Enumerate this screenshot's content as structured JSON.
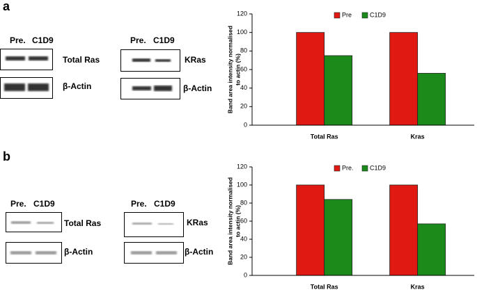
{
  "panels": [
    {
      "letter": "a",
      "blot_header": [
        "Pre.",
        "C1D9"
      ],
      "blots": [
        {
          "header": [
            "Pre.",
            "C1D9"
          ],
          "rows": [
            "Total Ras",
            "β-Actin"
          ]
        },
        {
          "header": [
            "Pre.",
            "C1D9"
          ],
          "rows": [
            "KRas",
            "β-Actin"
          ]
        }
      ]
    },
    {
      "letter": "b",
      "blot_header": [
        "Pre.",
        "C1D9"
      ],
      "blots": [
        {
          "header": [
            "Pre.",
            "C1D9"
          ],
          "rows": [
            "Total Ras",
            "β-Actin"
          ]
        },
        {
          "header": [
            "Pre.",
            "C1D9"
          ],
          "rows": [
            "KRas",
            "β-Actin"
          ]
        }
      ]
    }
  ],
  "chart_data": [
    {
      "type": "bar",
      "y_label": [
        "Band area intensity normalised",
        "to actin (%)"
      ],
      "categories": [
        "Total Ras",
        "Kras"
      ],
      "series": [
        {
          "name": "Pre",
          "color": "#e01a12",
          "values": [
            100,
            100
          ]
        },
        {
          "name": "C1D9",
          "color": "#1b8a1b",
          "values": [
            75,
            56
          ]
        }
      ],
      "ylim": [
        0,
        120
      ],
      "yticks": [
        0,
        20,
        40,
        60,
        80,
        100,
        120
      ],
      "legend": "top"
    },
    {
      "type": "bar",
      "y_label": [
        "Band area intensity normalised",
        "to actin (%)"
      ],
      "categories": [
        "Total Ras",
        "Kras"
      ],
      "series": [
        {
          "name": "Pre.",
          "color": "#e01a12",
          "values": [
            100,
            100
          ]
        },
        {
          "name": "C1D9",
          "color": "#1b8a1b",
          "values": [
            84,
            57
          ]
        }
      ],
      "ylim": [
        0,
        120
      ],
      "yticks": [
        0,
        20,
        40,
        60,
        80,
        100,
        120
      ],
      "legend": "top"
    }
  ]
}
